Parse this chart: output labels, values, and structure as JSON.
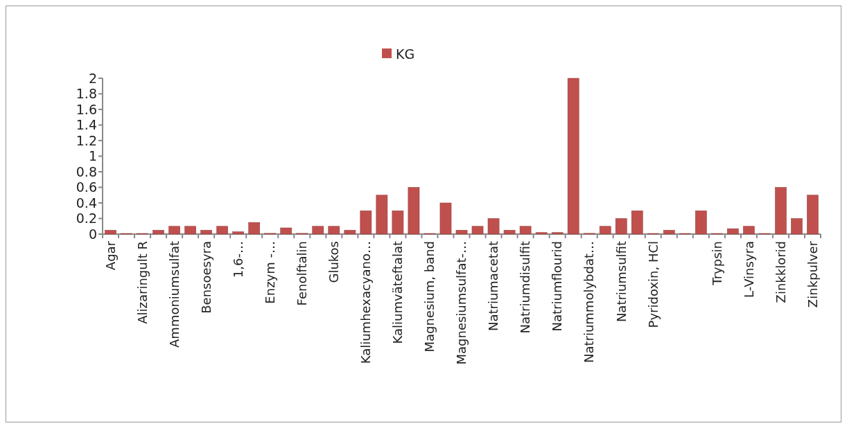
{
  "chart_data": {
    "type": "bar",
    "categories": [
      "Agar",
      null,
      "Alizaringult R",
      null,
      "Ammoniumsulfat",
      null,
      "Bensoesyra",
      null,
      "1,6-…",
      null,
      "Enzym -…",
      null,
      "Fenolftalin",
      null,
      "Glukos",
      null,
      "Kaliumhexacyano…",
      null,
      "Kaliumväteftalat",
      null,
      "Magnesium, band",
      null,
      "Magnesiumsulfat-…",
      null,
      "Natriumacetat",
      null,
      "Natriumdisulfit",
      null,
      "Natriumflourid",
      null,
      "Natriummolybdat…",
      null,
      "Natriumsulfit",
      null,
      "Pyridoxin, HCl",
      null,
      null,
      null,
      "Trypsin",
      null,
      "L-Vinsyra",
      null,
      "Zinkklorid",
      null,
      "Zinkpulver"
    ],
    "series": [
      {
        "name": "KG",
        "color": "#c0504d",
        "values": [
          0.05,
          0,
          0,
          0.05,
          0.1,
          0.1,
          0.05,
          0.1,
          0.03,
          0.15,
          0.01,
          0.08,
          0.01,
          0.1,
          0.1,
          0.05,
          0.3,
          0.5,
          0.3,
          0.6,
          0,
          0.4,
          0.05,
          0.1,
          0.2,
          0.05,
          0.1,
          0.02,
          0.02,
          2,
          0.01,
          0.1,
          0.2,
          0.3,
          0,
          0.05,
          0,
          0.3,
          0,
          0.07,
          0.1,
          0,
          0.6,
          0.2,
          0.5
        ]
      }
    ],
    "ylim": [
      0,
      2
    ],
    "yticks": [
      0,
      0.2,
      0.4,
      0.6,
      0.8,
      1,
      1.2,
      1.4,
      1.6,
      1.8,
      2
    ],
    "legend": "top",
    "grid": false
  }
}
